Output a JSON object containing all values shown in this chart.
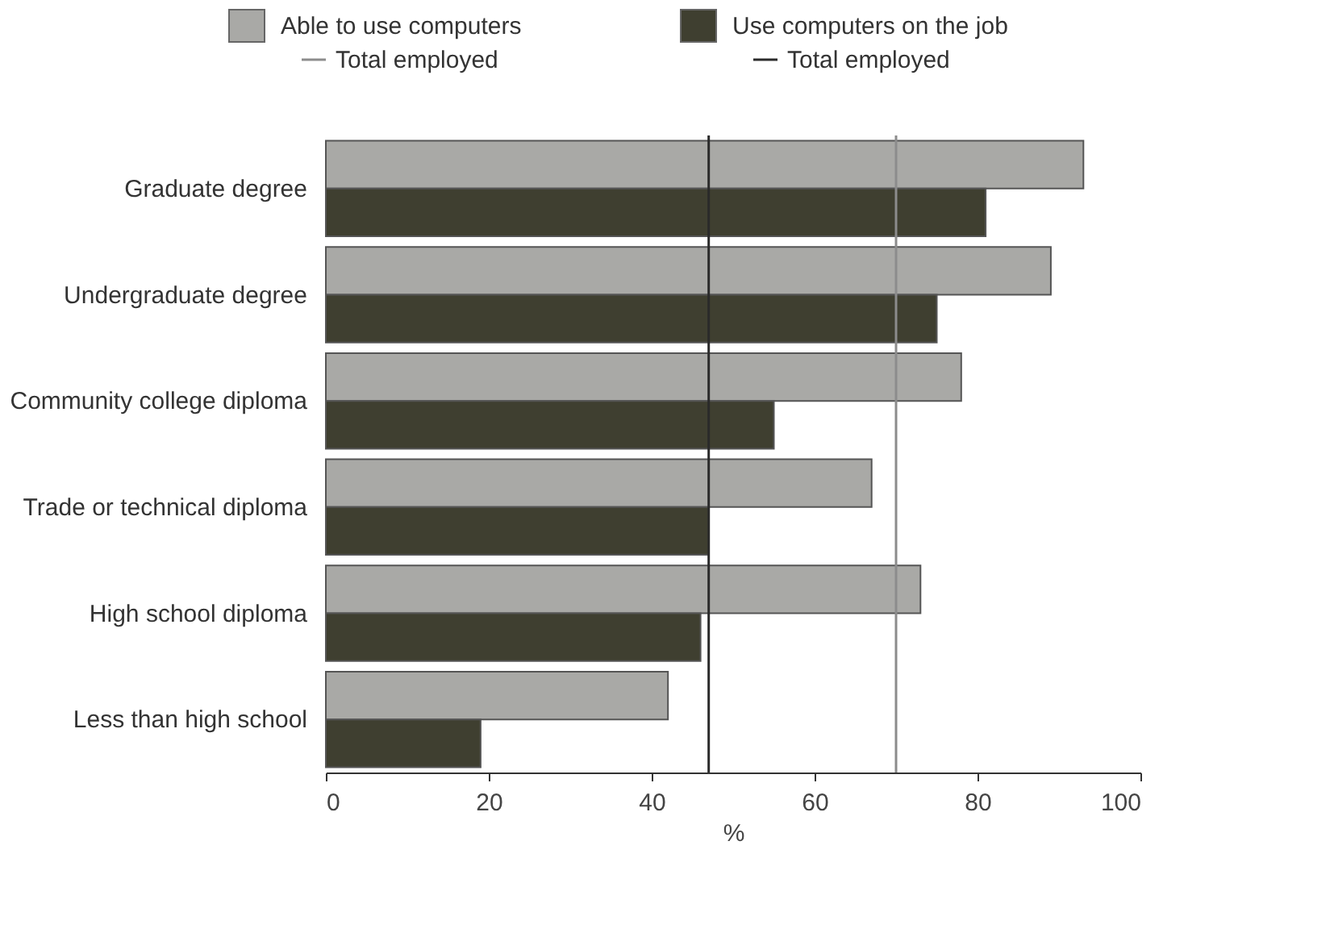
{
  "chart_data": {
    "type": "bar",
    "orientation": "horizontal",
    "xlabel": "%",
    "categories": [
      "Graduate degree",
      "Undergraduate degree",
      "Community college diploma",
      "Trade or technical diploma",
      "High school diploma",
      "Less than high school"
    ],
    "series": [
      {
        "name": "Able to use computers",
        "color": "#a9a9a6",
        "values": [
          93,
          89,
          78,
          67,
          73,
          42
        ]
      },
      {
        "name": "Use computers on the job",
        "color": "#3f3f30",
        "values": [
          81,
          75,
          55,
          47,
          46,
          19
        ]
      }
    ],
    "ref_lines": [
      {
        "axis": "x",
        "value": 70,
        "label": "Total employed",
        "color": "#8c8c8c"
      },
      {
        "axis": "x",
        "value": 47,
        "label": "Total employed",
        "color": "#2a2a2a"
      }
    ],
    "xlim": [
      0,
      100
    ],
    "xticks": [
      0,
      20,
      40,
      60,
      80,
      100
    ],
    "grid": false,
    "legend": "top"
  }
}
